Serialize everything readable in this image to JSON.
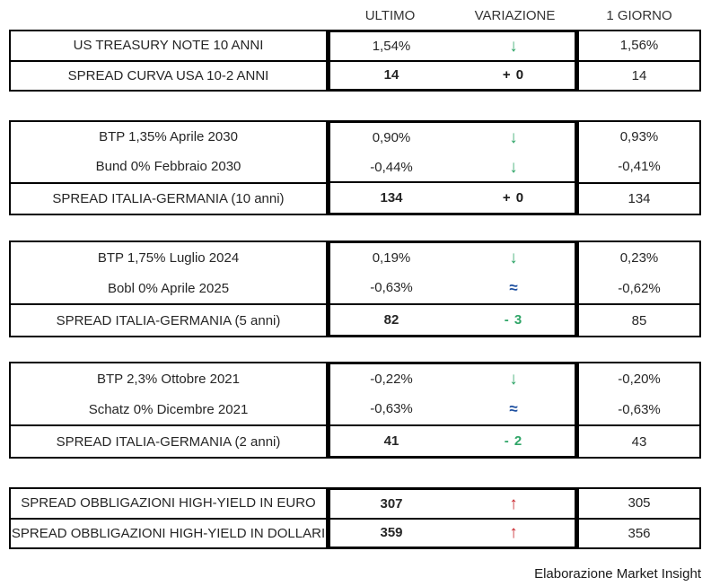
{
  "header": {
    "col_ultimo": "ULTIMO",
    "col_variazione": "VARIAZIONE",
    "col_giorno": "1 GIORNO"
  },
  "colors": {
    "green": "#2FA567",
    "red": "#C8232A",
    "blue": "#1E50A0",
    "black": "#1A1A1A",
    "border": "#000000",
    "text": "#262626"
  },
  "chart_data": {
    "type": "table",
    "columns": [
      "",
      "ULTIMO",
      "VARIAZIONE",
      "1 GIORNO"
    ],
    "tables": [
      {
        "name": "us-treasury",
        "rows": [
          {
            "label": "US TREASURY NOTE 10 ANNI",
            "ultimo": "1,54%",
            "variazione": "↓",
            "var_color": "green",
            "giorno": "1,56%",
            "emphasis": false,
            "divider": false
          },
          {
            "label": "SPREAD CURVA USA 10-2 ANNI",
            "ultimo": "14",
            "variazione": "+ 0",
            "var_color": "black",
            "giorno": "14",
            "emphasis": true,
            "divider": true
          }
        ]
      },
      {
        "name": "italia-germania-10-anni",
        "rows": [
          {
            "label": "BTP 1,35% Aprile 2030",
            "ultimo": "0,90%",
            "variazione": "↓",
            "var_color": "green",
            "giorno": "0,93%",
            "emphasis": false,
            "divider": false
          },
          {
            "label": "Bund 0% Febbraio 2030",
            "ultimo": "-0,44%",
            "variazione": "↓",
            "var_color": "green",
            "giorno": "-0,41%",
            "emphasis": false,
            "divider": false
          },
          {
            "label": "SPREAD ITALIA-GERMANIA (10 anni)",
            "ultimo": "134",
            "variazione": "+ 0",
            "var_color": "black",
            "giorno": "134",
            "emphasis": true,
            "divider": true
          }
        ]
      },
      {
        "name": "italia-germania-5-anni",
        "rows": [
          {
            "label": "BTP 1,75% Luglio 2024",
            "ultimo": "0,19%",
            "variazione": "↓",
            "var_color": "green",
            "giorno": "0,23%",
            "emphasis": false,
            "divider": false
          },
          {
            "label": "Bobl 0% Aprile 2025",
            "ultimo": "-0,63%",
            "variazione": "≈",
            "var_color": "blue",
            "giorno": "-0,62%",
            "emphasis": false,
            "divider": false
          },
          {
            "label": "SPREAD ITALIA-GERMANIA (5 anni)",
            "ultimo": "82",
            "variazione": "- 3",
            "var_color": "green",
            "giorno": "85",
            "emphasis": true,
            "divider": true
          }
        ]
      },
      {
        "name": "italia-germania-2-anni",
        "rows": [
          {
            "label": "BTP 2,3% Ottobre 2021",
            "ultimo": "-0,22%",
            "variazione": "↓",
            "var_color": "green",
            "giorno": "-0,20%",
            "emphasis": false,
            "divider": false
          },
          {
            "label": "Schatz 0% Dicembre 2021",
            "ultimo": "-0,63%",
            "variazione": "≈",
            "var_color": "blue",
            "giorno": "-0,63%",
            "emphasis": false,
            "divider": false
          },
          {
            "label": "SPREAD ITALIA-GERMANIA (2 anni)",
            "ultimo": "41",
            "variazione": "- 2",
            "var_color": "green",
            "giorno": "43",
            "emphasis": true,
            "divider": true
          }
        ]
      },
      {
        "name": "high-yield",
        "rows": [
          {
            "label": "SPREAD OBBLIGAZIONI HIGH-YIELD IN EURO",
            "ultimo": "307",
            "variazione": "↑",
            "var_color": "red",
            "giorno": "305",
            "emphasis": true,
            "divider": false
          },
          {
            "label": "SPREAD OBBLIGAZIONI HIGH-YIELD IN DOLLARI",
            "ultimo": "359",
            "variazione": "↑",
            "var_color": "red",
            "giorno": "356",
            "emphasis": true,
            "divider": true
          }
        ]
      }
    ]
  },
  "footer": {
    "credit": "Elaborazione Market Insight"
  }
}
